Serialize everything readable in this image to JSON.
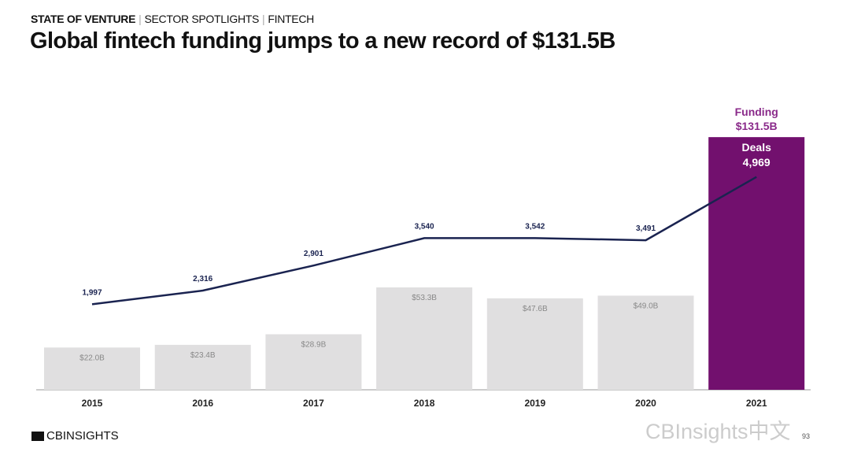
{
  "header": {
    "breadcrumb": [
      "STATE OF VENTURE",
      "SECTOR SPOTLIGHTS",
      "FINTECH"
    ],
    "title": "Global fintech funding jumps to a new record of $131.5B"
  },
  "footer": {
    "logo": "CBINSIGHTS",
    "watermark": "CBInsights中文",
    "page": "93"
  },
  "chart_data": {
    "type": "bar+line",
    "categories": [
      "2015",
      "2016",
      "2017",
      "2018",
      "2019",
      "2020",
      "2021"
    ],
    "series": [
      {
        "name": "Funding",
        "kind": "bar",
        "values": [
          22.0,
          23.4,
          28.9,
          53.3,
          47.6,
          49.0,
          131.5
        ],
        "labels": [
          "$22.0B",
          "$23.4B",
          "$28.9B",
          "$53.3B",
          "$47.6B",
          "$49.0B",
          "$131.5B"
        ]
      },
      {
        "name": "Deals",
        "kind": "line",
        "values": [
          1997,
          2316,
          2901,
          3540,
          3542,
          3491,
          4969
        ],
        "labels": [
          "1,997",
          "2,316",
          "2,901",
          "3,540",
          "3,542",
          "3,491",
          "4,969"
        ]
      }
    ],
    "colors": {
      "bar": "#e0dfe0",
      "highlight_bar": "#72106e",
      "line": "#1a2350",
      "highlight_label": "#8a2a8a"
    }
  }
}
